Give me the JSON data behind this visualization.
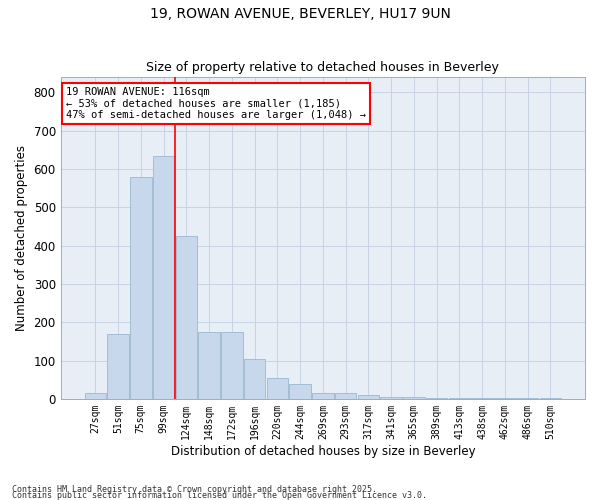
{
  "title1": "19, ROWAN AVENUE, BEVERLEY, HU17 9UN",
  "title2": "Size of property relative to detached houses in Beverley",
  "xlabel": "Distribution of detached houses by size in Beverley",
  "ylabel": "Number of detached properties",
  "bar_color": "#c8d8ec",
  "bar_edge_color": "#9ab8d0",
  "categories": [
    "27sqm",
    "51sqm",
    "75sqm",
    "99sqm",
    "124sqm",
    "148sqm",
    "172sqm",
    "196sqm",
    "220sqm",
    "244sqm",
    "269sqm",
    "293sqm",
    "317sqm",
    "341sqm",
    "365sqm",
    "389sqm",
    "413sqm",
    "438sqm",
    "462sqm",
    "486sqm",
    "510sqm"
  ],
  "values": [
    15,
    170,
    580,
    635,
    425,
    175,
    175,
    105,
    55,
    40,
    15,
    15,
    10,
    5,
    5,
    3,
    2,
    1,
    1,
    1,
    1
  ],
  "ylim": [
    0,
    840
  ],
  "yticks": [
    0,
    100,
    200,
    300,
    400,
    500,
    600,
    700,
    800
  ],
  "vline_x": 3.5,
  "annotation_text": "19 ROWAN AVENUE: 116sqm\n← 53% of detached houses are smaller (1,185)\n47% of semi-detached houses are larger (1,048) →",
  "annotation_box_color": "white",
  "annotation_box_edge_color": "red",
  "vline_color": "red",
  "grid_color": "#c8d4e4",
  "bg_color": "#e8eef6",
  "footer1": "Contains HM Land Registry data © Crown copyright and database right 2025.",
  "footer2": "Contains public sector information licensed under the Open Government Licence v3.0."
}
